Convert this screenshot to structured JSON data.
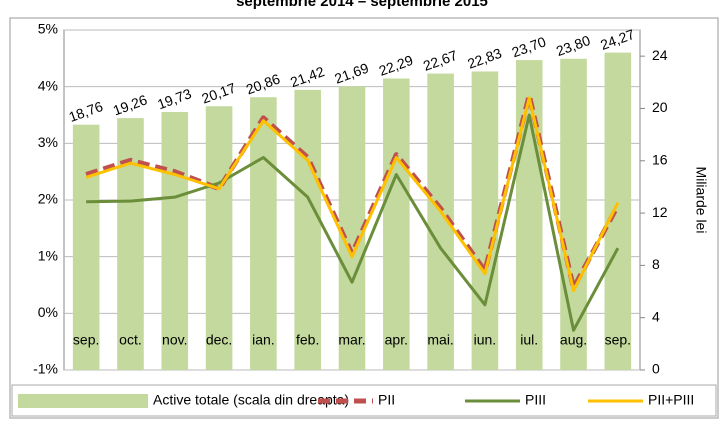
{
  "chart_data": {
    "type": "bar",
    "title": "septembrie 2014 – septembrie 2015",
    "categories": [
      "sep.",
      "oct.",
      "nov.",
      "dec.",
      "ian.",
      "feb.",
      "mar.",
      "apr.",
      "mai.",
      "iun.",
      "iul.",
      "aug.",
      "sep."
    ],
    "ylim": [
      -1,
      5
    ],
    "yticks": [
      {
        "value": -1,
        "label": "-1%"
      },
      {
        "value": 0,
        "label": "0%"
      },
      {
        "value": 1,
        "label": "1%"
      },
      {
        "value": 2,
        "label": "2%"
      },
      {
        "value": 3,
        "label": "3%"
      },
      {
        "value": 4,
        "label": "4%"
      },
      {
        "value": 5,
        "label": "5%"
      }
    ],
    "y2lim": [
      0,
      26
    ],
    "y2ticks": [
      0,
      4,
      8,
      12,
      16,
      20,
      24
    ],
    "y2label": "Miliarde lei",
    "grid": true,
    "legend": "bottom",
    "series": [
      {
        "name": "Active totale (scala din dreapta)",
        "type": "bar",
        "axis": "y2",
        "color": "#c3d99d",
        "values": [
          18.76,
          19.26,
          19.73,
          20.17,
          20.86,
          21.42,
          21.69,
          22.29,
          22.67,
          22.83,
          23.7,
          23.8,
          24.27
        ],
        "value_labels": [
          "18,76",
          "19,26",
          "19,73",
          "20,17",
          "20,86",
          "21,42",
          "21,69",
          "22,29",
          "22,67",
          "22,83",
          "23,70",
          "23,80",
          "24,27"
        ]
      },
      {
        "name": "PII",
        "type": "line",
        "dashed": true,
        "color": "#c0504d",
        "values": [
          2.45,
          2.7,
          2.5,
          2.2,
          3.45,
          2.75,
          1.05,
          2.8,
          1.85,
          0.75,
          3.85,
          0.45,
          1.9
        ]
      },
      {
        "name": "PIII",
        "type": "line",
        "dashed": false,
        "color": "#6b8e3a",
        "values": [
          1.97,
          1.98,
          2.05,
          2.3,
          2.75,
          2.05,
          0.55,
          2.45,
          1.15,
          0.15,
          3.5,
          -0.3,
          1.15
        ]
      },
      {
        "name": "PII+PIII",
        "type": "line",
        "dashed": false,
        "color": "#ffc000",
        "values": [
          2.4,
          2.65,
          2.45,
          2.2,
          3.4,
          2.7,
          1.0,
          2.75,
          1.8,
          0.7,
          3.8,
          0.4,
          1.95
        ]
      }
    ]
  }
}
